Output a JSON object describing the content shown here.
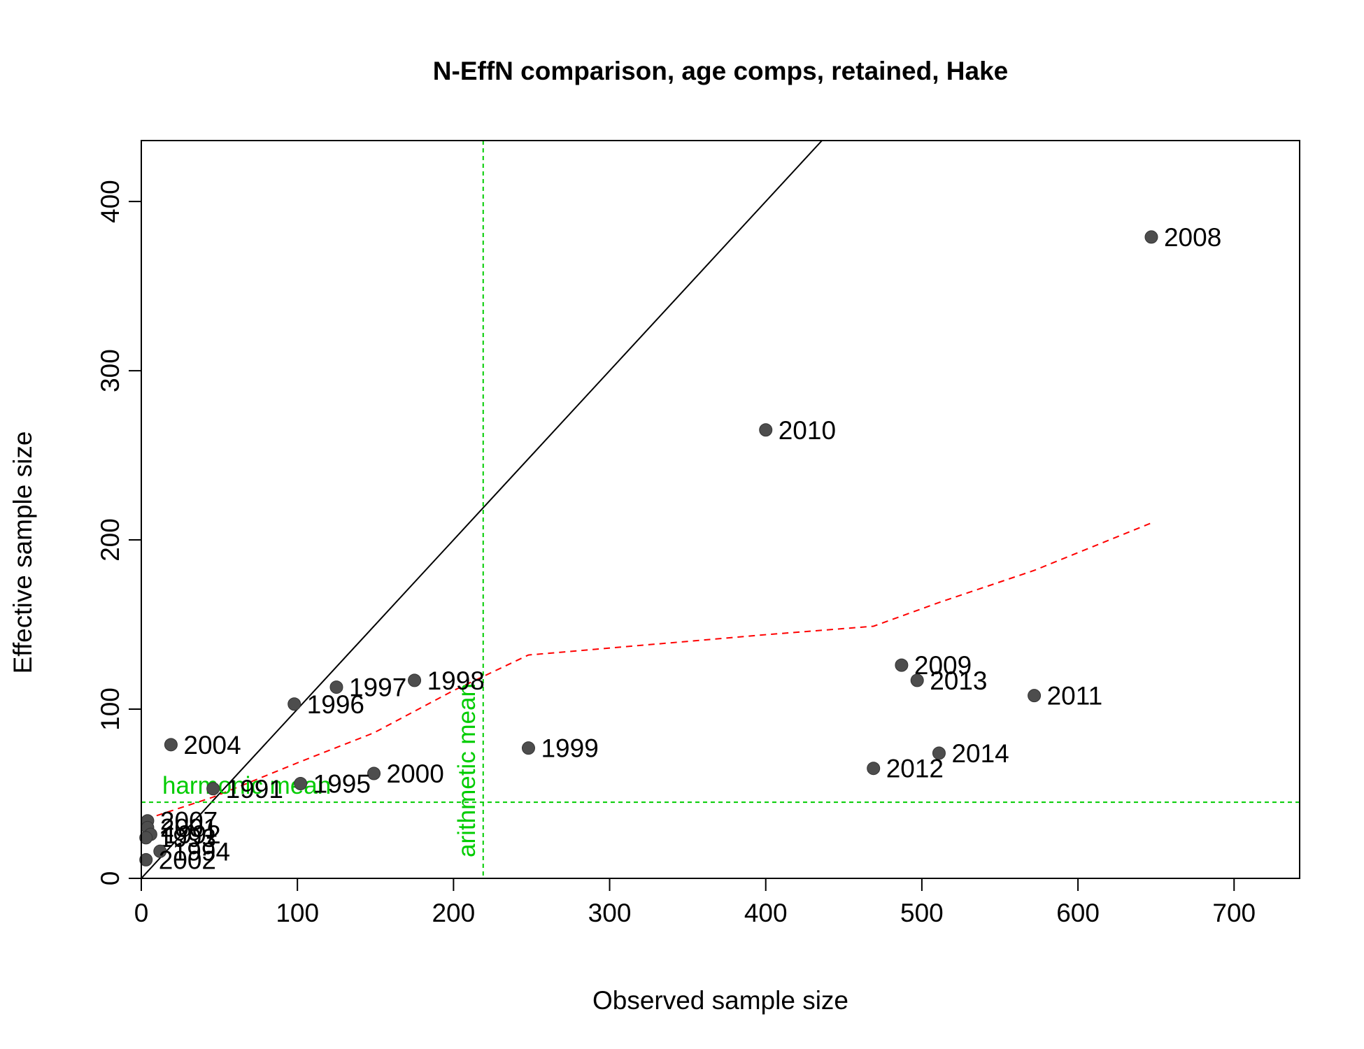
{
  "chart_data": {
    "type": "scatter",
    "title": "N-EffN comparison, age comps, retained, Hake",
    "xlabel": "Observed sample size",
    "ylabel": "Effective sample size",
    "xlim": [
      0,
      742
    ],
    "ylim": [
      0,
      436
    ],
    "xticks": [
      0,
      100,
      200,
      300,
      400,
      500,
      600,
      700
    ],
    "yticks": [
      0,
      100,
      200,
      300,
      400
    ],
    "point_color": "#4d4d4d",
    "points": [
      {
        "label": "2008",
        "x": 647,
        "y": 379
      },
      {
        "label": "2010",
        "x": 400,
        "y": 265
      },
      {
        "label": "2009",
        "x": 487,
        "y": 126
      },
      {
        "label": "2013",
        "x": 497,
        "y": 117
      },
      {
        "label": "2011",
        "x": 572,
        "y": 108
      },
      {
        "label": "2014",
        "x": 511,
        "y": 74
      },
      {
        "label": "2012",
        "x": 469,
        "y": 65
      },
      {
        "label": "1999",
        "x": 248,
        "y": 77
      },
      {
        "label": "1998",
        "x": 175,
        "y": 117
      },
      {
        "label": "1997",
        "x": 125,
        "y": 113
      },
      {
        "label": "1996",
        "x": 98,
        "y": 103
      },
      {
        "label": "2004",
        "x": 19,
        "y": 79
      },
      {
        "label": "2000",
        "x": 149,
        "y": 62
      },
      {
        "label": "1995",
        "x": 102,
        "y": 56
      },
      {
        "label": "1991",
        "x": 46,
        "y": 53
      },
      {
        "label": "2007",
        "x": 4,
        "y": 34
      },
      {
        "label": "2001",
        "x": 4,
        "y": 30
      },
      {
        "label": "1992",
        "x": 6,
        "y": 26
      },
      {
        "label": "1993",
        "x": 3,
        "y": 24
      },
      {
        "label": "1994",
        "x": 12,
        "y": 16
      },
      {
        "label": "2002",
        "x": 3,
        "y": 11
      }
    ],
    "identity_line": {
      "from": [
        0,
        0
      ],
      "to": [
        436,
        436
      ],
      "color": "#000000"
    },
    "smoother": {
      "color": "#ff0000",
      "style": "dashed",
      "x": [
        3,
        46,
        102,
        149,
        200,
        248,
        400,
        469,
        511,
        572,
        647
      ],
      "y": [
        35,
        48,
        69,
        86,
        111,
        132,
        144,
        149,
        163,
        182,
        210
      ]
    },
    "harmonic_mean": {
      "label": "harmonic mean",
      "value": 45,
      "color": "#00cc00"
    },
    "arithmetic_mean": {
      "label": "arithmetic mean",
      "value": 219,
      "color": "#00cc00"
    }
  }
}
